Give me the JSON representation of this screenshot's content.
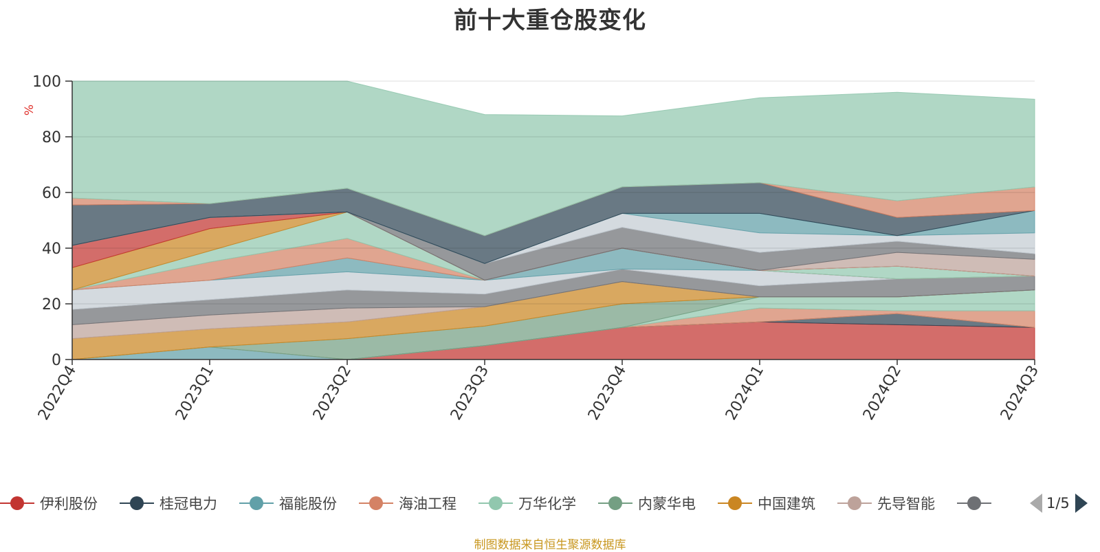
{
  "chart_data": {
    "type": "area",
    "title": "前十大重仓股变化",
    "ylabel": "%",
    "ylim": [
      0,
      100
    ],
    "yticks": [
      "0",
      "20",
      "40",
      "60",
      "80",
      "100"
    ],
    "categories": [
      "2022Q4",
      "2023Q1",
      "2023Q2",
      "2023Q3",
      "2023Q4",
      "2024Q1",
      "2024Q2",
      "2024Q3"
    ],
    "grid": true,
    "legend_position": "bottom",
    "legend_page": "1/5",
    "footer": "制图数据来自恒生聚源数据库",
    "series": [
      {
        "name": "伊利股份",
        "color": "#c23531",
        "values": [
          0,
          0,
          0,
          5,
          11.5,
          13.5,
          12.5,
          11.5
        ]
      },
      {
        "name": "桂冠电力",
        "color": "#2f4554",
        "values": [
          0,
          0,
          0,
          0,
          0,
          0,
          4,
          0
        ]
      },
      {
        "name": "福能股份",
        "color": "#61a0a8",
        "values": [
          0,
          4.5,
          0,
          0,
          0,
          0,
          0,
          0
        ]
      },
      {
        "name": "海油工程",
        "color": "#d48265",
        "values": [
          0,
          0,
          0,
          0,
          0,
          5,
          1,
          6
        ]
      },
      {
        "name": "万华化学",
        "color": "#91c7ae",
        "values": [
          0,
          0,
          0,
          0,
          0,
          4,
          5,
          7.5
        ]
      },
      {
        "name": "内蒙华电",
        "color": "#749f83",
        "values": [
          0,
          0,
          7.5,
          7,
          8.5,
          0,
          0,
          0
        ]
      },
      {
        "name": "中国建筑",
        "color": "#ca8622",
        "values": [
          7.5,
          6.5,
          6,
          7,
          8,
          0,
          0,
          0
        ]
      },
      {
        "name": "先导智能",
        "color": "#bda29a",
        "values": [
          5,
          5,
          5,
          0,
          0,
          0,
          0,
          0
        ]
      },
      {
        "name": "",
        "color": "#6e7074",
        "values": [
          5.5,
          5.5,
          6.5,
          4.5,
          4.5,
          4,
          6.5,
          5
        ]
      },
      {
        "name": "",
        "color": "#c4ccd3",
        "values": [
          7,
          7,
          6.5,
          5,
          0,
          5.5,
          0,
          0
        ]
      },
      {
        "name": "",
        "color": "#61a0a8",
        "values": [
          0,
          0,
          5,
          0,
          7.5,
          0,
          0,
          0
        ]
      },
      {
        "name": "",
        "color": "#d48265",
        "values": [
          0,
          6.5,
          7,
          0,
          0,
          0,
          0,
          0
        ]
      },
      {
        "name": "",
        "color": "#91c7ae",
        "values": [
          0,
          4,
          9.5,
          0,
          0,
          0,
          4.5,
          0
        ]
      },
      {
        "name": "",
        "color": "#ca8622",
        "values": [
          8,
          8,
          0,
          0,
          0,
          0,
          0,
          0
        ]
      },
      {
        "name": "",
        "color": "#c23531",
        "values": [
          8,
          4,
          0,
          0,
          0,
          0,
          0,
          0
        ]
      },
      {
        "name": "",
        "color": "#bda29a",
        "values": [
          0,
          0,
          0,
          0,
          0,
          0,
          5,
          6
        ]
      },
      {
        "name": "",
        "color": "#6e7074",
        "values": [
          0,
          0,
          0,
          6,
          7.5,
          6.5,
          4,
          2
        ]
      },
      {
        "name": "",
        "color": "#c4ccd3",
        "values": [
          0,
          0,
          0,
          0,
          5,
          7,
          2,
          7.5
        ]
      },
      {
        "name": "",
        "color": "#61a0a8",
        "values": [
          0,
          0,
          0,
          0,
          0,
          7,
          0,
          8
        ]
      },
      {
        "name": "",
        "color": "#2f4554",
        "values": [
          14.5,
          5,
          8.5,
          10,
          9.5,
          11,
          6.5,
          0
        ]
      },
      {
        "name": "",
        "color": "#d48265",
        "values": [
          2.5,
          0,
          0,
          0,
          0,
          0,
          6,
          8.5
        ]
      },
      {
        "name": "",
        "color": "#91c7ae",
        "values": [
          42,
          44,
          38.5,
          43.5,
          25.5,
          30.5,
          39,
          31.5
        ]
      }
    ]
  }
}
